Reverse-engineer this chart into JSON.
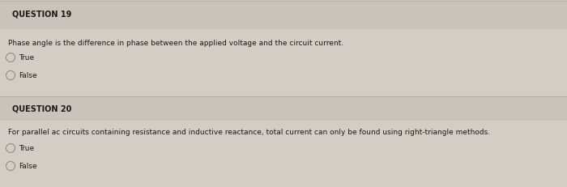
{
  "bg_color": "#d3cdc5",
  "q1_header": "QUESTION 19",
  "q1_body": "Phase angle is the difference in phase between the applied voltage and the circuit current.",
  "q1_options": [
    "True",
    "False"
  ],
  "q2_header": "QUESTION 20",
  "q2_body": "For parallel ac circuits containing resistance and inductive reactance, total current can only be found using right-triangle methods.",
  "q2_options": [
    "True",
    "False"
  ],
  "header_fontsize": 7.0,
  "body_fontsize": 6.5,
  "option_fontsize": 6.5,
  "text_color": "#1a1a1a",
  "divider_color": "#b0a898",
  "header_bg": "#c9c3bb",
  "circle_color": "#888880",
  "fig_width": 7.0,
  "fig_height": 2.32,
  "dpi": 100
}
